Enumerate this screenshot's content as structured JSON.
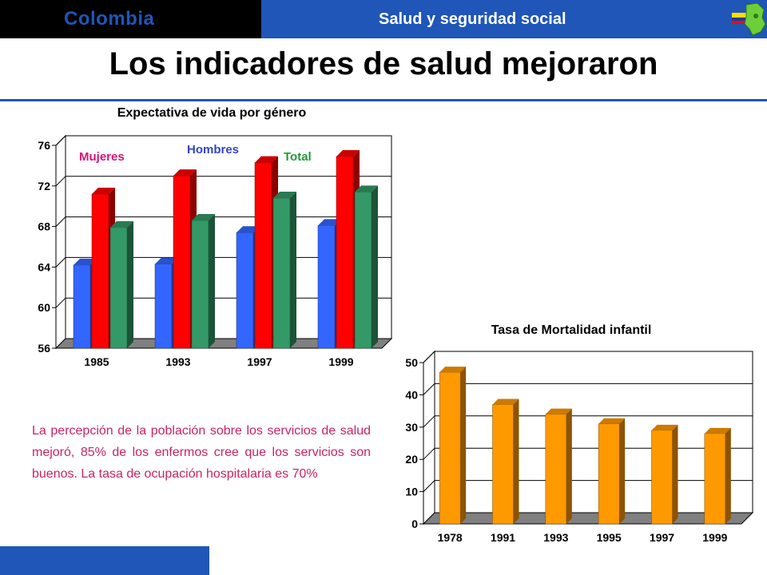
{
  "header": {
    "country": "Colombia",
    "section": "Salud y seguridad social",
    "logo_icon": "colombia-map-flag-icon"
  },
  "page": {
    "title": "Los indicadores de salud mejoraron",
    "note": "La percepción de la población sobre los servicios de salud mejoró, 85% de los enfermos cree que los servicios son buenos. La tasa de ocupación hospitalaria es 70%"
  },
  "colors": {
    "brand_blue": "#1f56b8",
    "mujeres": "#ff0000",
    "hombres": "#3366ff",
    "total": "#339966",
    "mortalidad": "#ff9900",
    "note_text": "#cc2266"
  },
  "chart_data": [
    {
      "type": "bar",
      "title": "Expectativa de vida por género",
      "categories": [
        "1985",
        "1993",
        "1997",
        "1999"
      ],
      "series": [
        {
          "name": "Hombres",
          "values": [
            64.2,
            64.3,
            67.4,
            68.1
          ]
        },
        {
          "name": "Mujeres",
          "values": [
            71.2,
            73.0,
            74.3,
            74.9
          ]
        },
        {
          "name": "Total",
          "values": [
            67.9,
            68.6,
            70.8,
            71.4
          ]
        }
      ],
      "ylim": [
        56,
        76
      ],
      "yticks": [
        "56",
        "60",
        "64",
        "68",
        "72",
        "76"
      ],
      "grid": true,
      "legend": "labels above bars, top-left"
    },
    {
      "type": "bar",
      "title": "Tasa de Mortalidad infantil",
      "categories": [
        "1978",
        "1991",
        "1993",
        "1995",
        "1997",
        "1999"
      ],
      "values": [
        47,
        37,
        34,
        31,
        29,
        28
      ],
      "ylim": [
        0,
        50
      ],
      "yticks": [
        "0",
        "10",
        "20",
        "30",
        "40",
        "50"
      ],
      "grid": true
    }
  ]
}
